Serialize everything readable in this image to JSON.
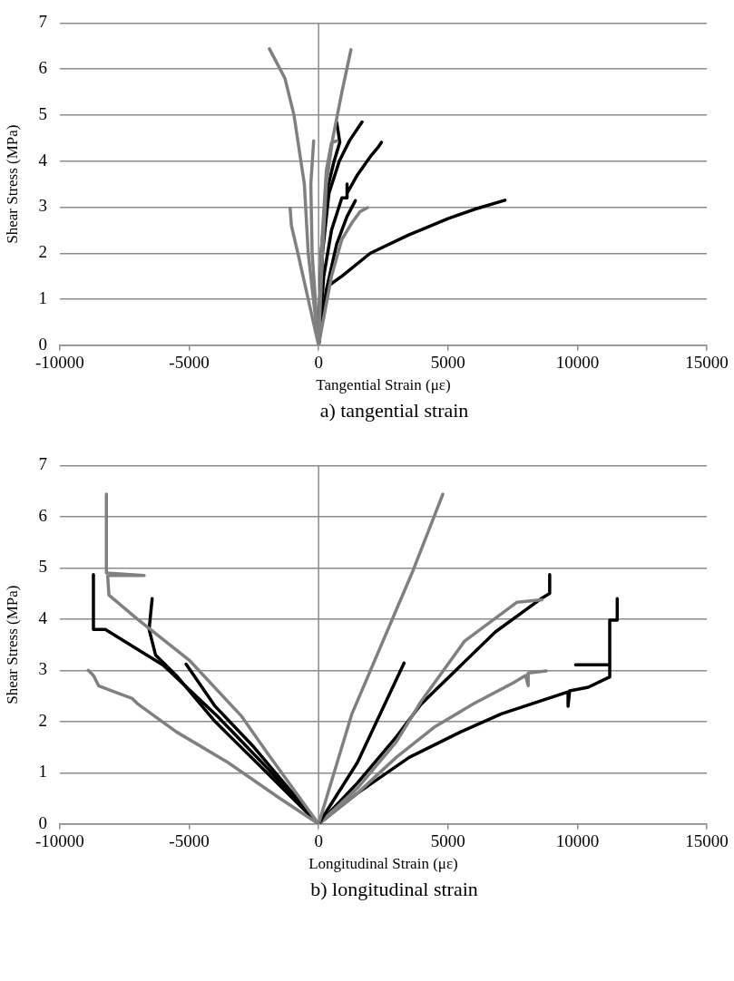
{
  "chart_data": [
    {
      "type": "line",
      "xlabel": "Tangential Strain (με)",
      "ylabel": "Shear Stress (MPa)",
      "annotations": [
        "a) tangential strain"
      ],
      "xlim": [
        -10000,
        15000
      ],
      "xticks": [
        -10000,
        -5000,
        0,
        5000,
        10000,
        15000
      ],
      "ylim": [
        0,
        7
      ],
      "yticks": [
        0,
        1,
        2,
        3,
        4,
        5,
        6,
        7
      ],
      "grid": "y",
      "legend": false,
      "marker": "none",
      "line_style": "solid",
      "ref_lines": [
        {
          "axis": "x",
          "value": 0,
          "color": "#8c8c8c"
        }
      ],
      "series": [
        {
          "color": "#808080",
          "x": [
            0,
            -200,
            -400,
            -550,
            -950,
            -1300,
            -1900
          ],
          "values": [
            0,
            1,
            2,
            3.5,
            5,
            5.8,
            6.44
          ]
        },
        {
          "color": "#808080",
          "x": [
            0,
            150,
            300,
            550,
            900,
            1250
          ],
          "values": [
            0,
            2,
            3.5,
            4.5,
            5.5,
            6.42
          ]
        },
        {
          "color": "#808080",
          "x": [
            0,
            -400,
            -800,
            -1050,
            -1100
          ],
          "values": [
            0,
            1,
            2,
            2.6,
            2.98
          ]
        },
        {
          "color": "#808080",
          "x": [
            0,
            -250,
            -300,
            -190
          ],
          "values": [
            0,
            2,
            3.5,
            4.44
          ]
        },
        {
          "color": "#808080",
          "x": [
            0,
            100,
            300,
            500,
            700
          ],
          "values": [
            0,
            2,
            3.8,
            4.4,
            4.44
          ]
        },
        {
          "color": "#808080",
          "x": [
            0,
            500,
            900,
            1300,
            1470,
            1600,
            1890
          ],
          "values": [
            0,
            1.5,
            2.3,
            2.67,
            2.8,
            2.9,
            2.99
          ]
        },
        {
          "color": "#000000",
          "x": [
            0,
            150,
            400,
            900,
            2000,
            3500,
            5000,
            6000,
            7200
          ],
          "values": [
            0,
            0.8,
            1.3,
            1.5,
            2,
            2.4,
            2.75,
            2.95,
            3.15
          ]
        },
        {
          "color": "#000000",
          "x": [
            0,
            300,
            700,
            1100,
            1420
          ],
          "values": [
            0,
            1.2,
            2.2,
            2.8,
            3.14
          ]
        },
        {
          "color": "#000000",
          "x": [
            0,
            200,
            500,
            900,
            1100,
            1100,
            1100,
            1500,
            2000,
            2300,
            2430
          ],
          "values": [
            0,
            1.5,
            2.5,
            3.2,
            3.2,
            3.5,
            3.3,
            3.7,
            4.1,
            4.3,
            4.41
          ]
        },
        {
          "color": "#000000",
          "x": [
            0,
            150,
            400,
            800,
            1200,
            1680
          ],
          "values": [
            0,
            2,
            3.3,
            4,
            4.45,
            4.85
          ]
        },
        {
          "color": "#000000",
          "x": [
            0,
            100,
            300,
            600,
            820,
            700
          ],
          "values": [
            0,
            2,
            3.3,
            4,
            4.41,
            4.84
          ]
        }
      ]
    },
    {
      "type": "line",
      "xlabel": "Longitudinal Strain (με)",
      "ylabel": "Shear Stress (MPa)",
      "annotations": [
        "b) longitudinal strain"
      ],
      "xlim": [
        -10000,
        15000
      ],
      "xticks": [
        -10000,
        -5000,
        0,
        5000,
        10000,
        15000
      ],
      "ylim": [
        0,
        7
      ],
      "yticks": [
        0,
        1,
        2,
        3,
        4,
        5,
        6,
        7
      ],
      "grid": "y",
      "legend": false,
      "marker": "none",
      "line_style": "solid",
      "ref_lines": [
        {
          "axis": "x",
          "value": 0,
          "color": "#8c8c8c"
        }
      ],
      "series": [
        {
          "color": "#808080",
          "x": [
            0,
            -1000,
            -2000,
            -2970,
            -5000,
            -7000,
            -8100,
            -8150,
            -6740,
            -8200,
            -8200
          ],
          "values": [
            0,
            0.7,
            1.4,
            2.1,
            3.2,
            4,
            4.47,
            4.85,
            4.85,
            4.9,
            6.44
          ]
        },
        {
          "color": "#808080",
          "x": [
            0,
            -1500,
            -3500,
            -5500,
            -7000,
            -7200,
            -8000,
            -8500,
            -8700,
            -8900
          ],
          "values": [
            0,
            0.5,
            1.2,
            1.8,
            2.35,
            2.45,
            2.6,
            2.7,
            2.9,
            3
          ]
        },
        {
          "color": "#000000",
          "x": [
            0,
            -2000,
            -3900,
            -6000,
            -8240,
            -8700,
            -8700
          ],
          "values": [
            0,
            1.1,
            2.1,
            3.1,
            3.8,
            3.8,
            4.87
          ]
        },
        {
          "color": "#000000",
          "x": [
            0,
            -2000,
            -4000,
            -5500,
            -6300,
            -6550,
            -6430
          ],
          "values": [
            0,
            1,
            2,
            2.9,
            3.3,
            3.8,
            4.4
          ]
        },
        {
          "color": "#000000",
          "x": [
            0,
            -2500,
            -4000,
            -5120
          ],
          "values": [
            0,
            1.5,
            2.3,
            3.12
          ]
        },
        {
          "color": "#808080",
          "x": [
            0,
            1280,
            3610,
            4800
          ],
          "values": [
            0,
            2.14,
            4.9,
            6.44
          ]
        },
        {
          "color": "#000000",
          "x": [
            0,
            1500,
            3300
          ],
          "values": [
            0,
            1.2,
            3.14
          ]
        },
        {
          "color": "#808080",
          "x": [
            0,
            1500,
            3000,
            3970,
            5640,
            7670,
            8630
          ],
          "values": [
            0,
            0.7,
            1.6,
            2.4,
            3.57,
            4.33,
            4.38
          ]
        },
        {
          "color": "#000000",
          "x": [
            0,
            1500,
            3000,
            3960,
            6830,
            8630,
            8930,
            8930
          ],
          "values": [
            0,
            0.8,
            1.7,
            2.34,
            3.75,
            4.41,
            4.5,
            4.87
          ]
        },
        {
          "color": "#808080",
          "x": [
            0,
            1500,
            3000,
            4500,
            6000,
            7500,
            8000,
            8100,
            8100,
            8800
          ],
          "values": [
            0,
            0.6,
            1.3,
            1.9,
            2.35,
            2.75,
            2.9,
            2.7,
            2.95,
            2.99
          ]
        },
        {
          "color": "#000000",
          "x": [
            0,
            1500,
            3500,
            5500,
            7060,
            9640,
            9640,
            9700,
            10420,
            11250,
            11250,
            9930,
            11250,
            11250,
            11540,
            11540
          ],
          "values": [
            0,
            0.6,
            1.3,
            1.8,
            2.15,
            2.58,
            2.3,
            2.6,
            2.67,
            2.87,
            3.11,
            3.11,
            3.11,
            3.98,
            3.98,
            4.4
          ]
        }
      ]
    }
  ]
}
